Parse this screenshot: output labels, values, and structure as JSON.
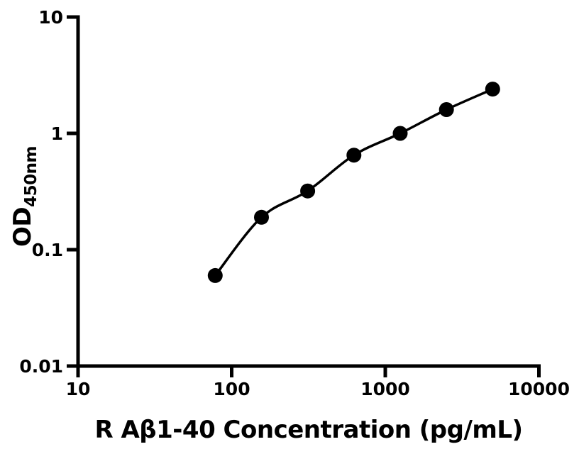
{
  "figure": {
    "background_color": "#ffffff",
    "foreground_color": "#000000"
  },
  "chart_data": {
    "type": "scatter",
    "curve": "smooth-fit-line",
    "title": "",
    "xlabel": "R Aβ1-40 Concentration (pg/mL)",
    "ylabel_main": "OD",
    "ylabel_sub": "450nm",
    "x_scale": "log",
    "y_scale": "log",
    "xlim": [
      10,
      10000
    ],
    "ylim": [
      0.01,
      10
    ],
    "x_ticks": [
      10,
      100,
      1000,
      10000
    ],
    "x_tick_labels": [
      "10",
      "100",
      "1000",
      "10000"
    ],
    "y_ticks": [
      0.01,
      0.1,
      1,
      10
    ],
    "y_tick_labels": [
      "0.01",
      "0.1",
      "1",
      "10"
    ],
    "grid": false,
    "legend": false,
    "series": [
      {
        "name": "standard-curve",
        "marker": "filled-circle",
        "color": "#000000",
        "x": [
          78.125,
          156.25,
          312.5,
          625,
          1250,
          2500,
          5000
        ],
        "y": [
          0.06,
          0.19,
          0.32,
          0.65,
          1.0,
          1.6,
          2.4
        ]
      }
    ]
  }
}
